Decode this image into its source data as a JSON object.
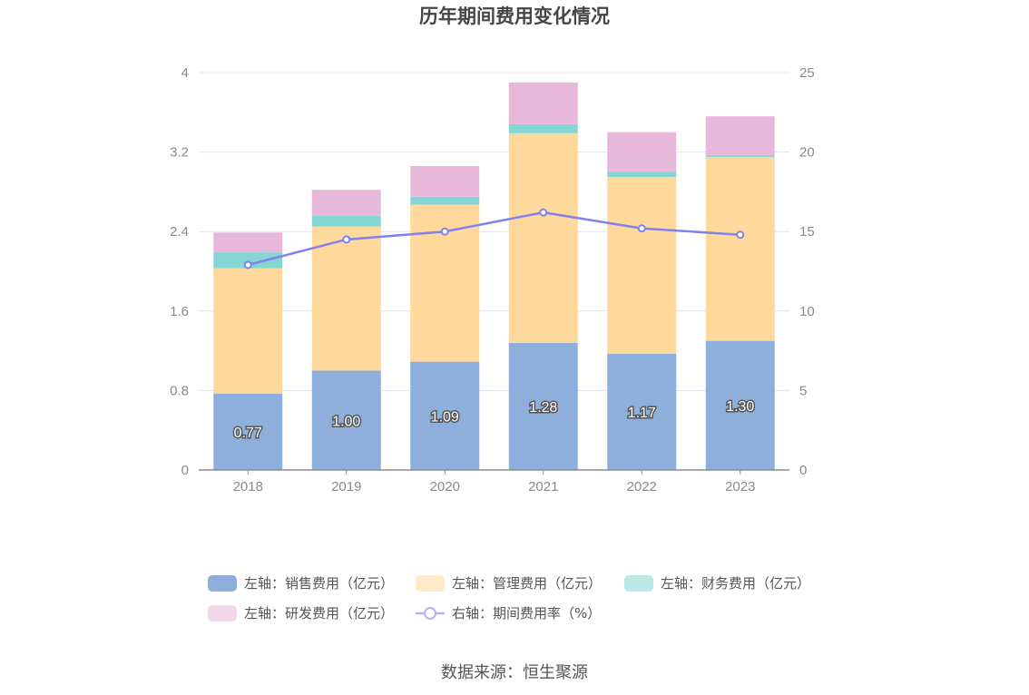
{
  "chart_data": {
    "type": "bar",
    "stacked": true,
    "title": "历年期间费用变化情况",
    "categories": [
      "2018",
      "2019",
      "2020",
      "2021",
      "2022",
      "2023"
    ],
    "y_left": {
      "ylim": [
        0,
        4
      ],
      "ticks": [
        "0",
        "0.8",
        "1.6",
        "2.4",
        "3.2",
        "4"
      ]
    },
    "y_right": {
      "ylim": [
        0,
        25
      ],
      "ticks": [
        "0",
        "5",
        "10",
        "15",
        "20",
        "25"
      ]
    },
    "series": [
      {
        "name": "左轴：销售费用（亿元）",
        "axis": "left",
        "type": "bar",
        "color": "#8eaedb",
        "values": [
          0.77,
          1.0,
          1.09,
          1.28,
          1.17,
          1.3
        ],
        "labels": [
          "0.77",
          "1.00",
          "1.09",
          "1.28",
          "1.17",
          "1.30"
        ]
      },
      {
        "name": "左轴：管理费用（亿元）",
        "axis": "left",
        "type": "bar",
        "color": "#ffd99b",
        "values": [
          1.26,
          1.45,
          1.58,
          2.11,
          1.78,
          1.85
        ]
      },
      {
        "name": "左轴：财务费用（亿元）",
        "axis": "left",
        "type": "bar",
        "color": "#85d5d5",
        "values": [
          0.16,
          0.11,
          0.08,
          0.09,
          0.05,
          0.02
        ]
      },
      {
        "name": "左轴：研发费用（亿元）",
        "axis": "left",
        "type": "bar",
        "color": "#e8b8da",
        "values": [
          0.2,
          0.26,
          0.31,
          0.42,
          0.4,
          0.39
        ]
      },
      {
        "name": "右轴：期间费用率（%）",
        "axis": "right",
        "type": "line",
        "color": "#8080ee",
        "values": [
          12.9,
          14.5,
          15.0,
          16.2,
          15.2,
          14.8
        ]
      }
    ],
    "legend_position": "bottom",
    "source": "数据来源：恒生聚源"
  }
}
